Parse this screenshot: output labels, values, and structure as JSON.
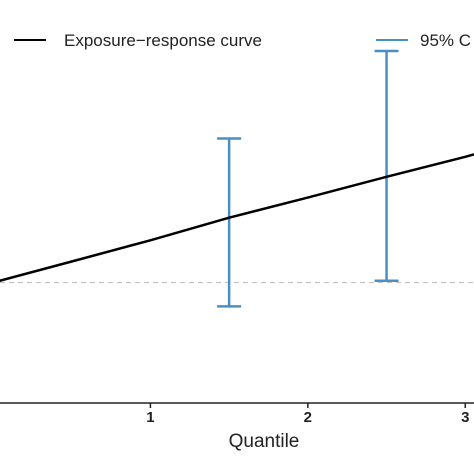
{
  "chart_data": {
    "type": "line",
    "xlabel": "Quantile",
    "ylabel": "",
    "xlim": [
      0.0,
      3.1
    ],
    "ylim": [
      -0.33,
      0.75
    ],
    "xticks": [
      {
        "value": 1,
        "label": "1"
      },
      {
        "value": 2,
        "label": "2"
      },
      {
        "value": 3,
        "label": "3"
      }
    ],
    "reference_line": {
      "y": 0,
      "style": "dashed",
      "color": "#bbbbbb"
    },
    "legend": {
      "placement": "top",
      "entries": [
        {
          "label": "Exposure−response curve",
          "color": "#000000"
        },
        {
          "label": "95% C",
          "color": "#4a8fc4"
        }
      ]
    },
    "series": [
      {
        "name": "Exposure−response curve",
        "color": "#000000",
        "x": [
          0.0,
          0.5,
          1.0,
          1.5,
          2.0,
          2.5,
          3.0,
          3.1
        ],
        "y": [
          0.0,
          0.058,
          0.116,
          0.178,
          0.233,
          0.29,
          0.345,
          0.357
        ]
      }
    ],
    "error_bars": {
      "name": "95% C",
      "color": "#4a8fc4",
      "points": [
        {
          "x": 1.5,
          "lower": -0.065,
          "upper": 0.395
        },
        {
          "x": 2.5,
          "lower": 0.005,
          "upper": 0.635
        }
      ]
    }
  }
}
